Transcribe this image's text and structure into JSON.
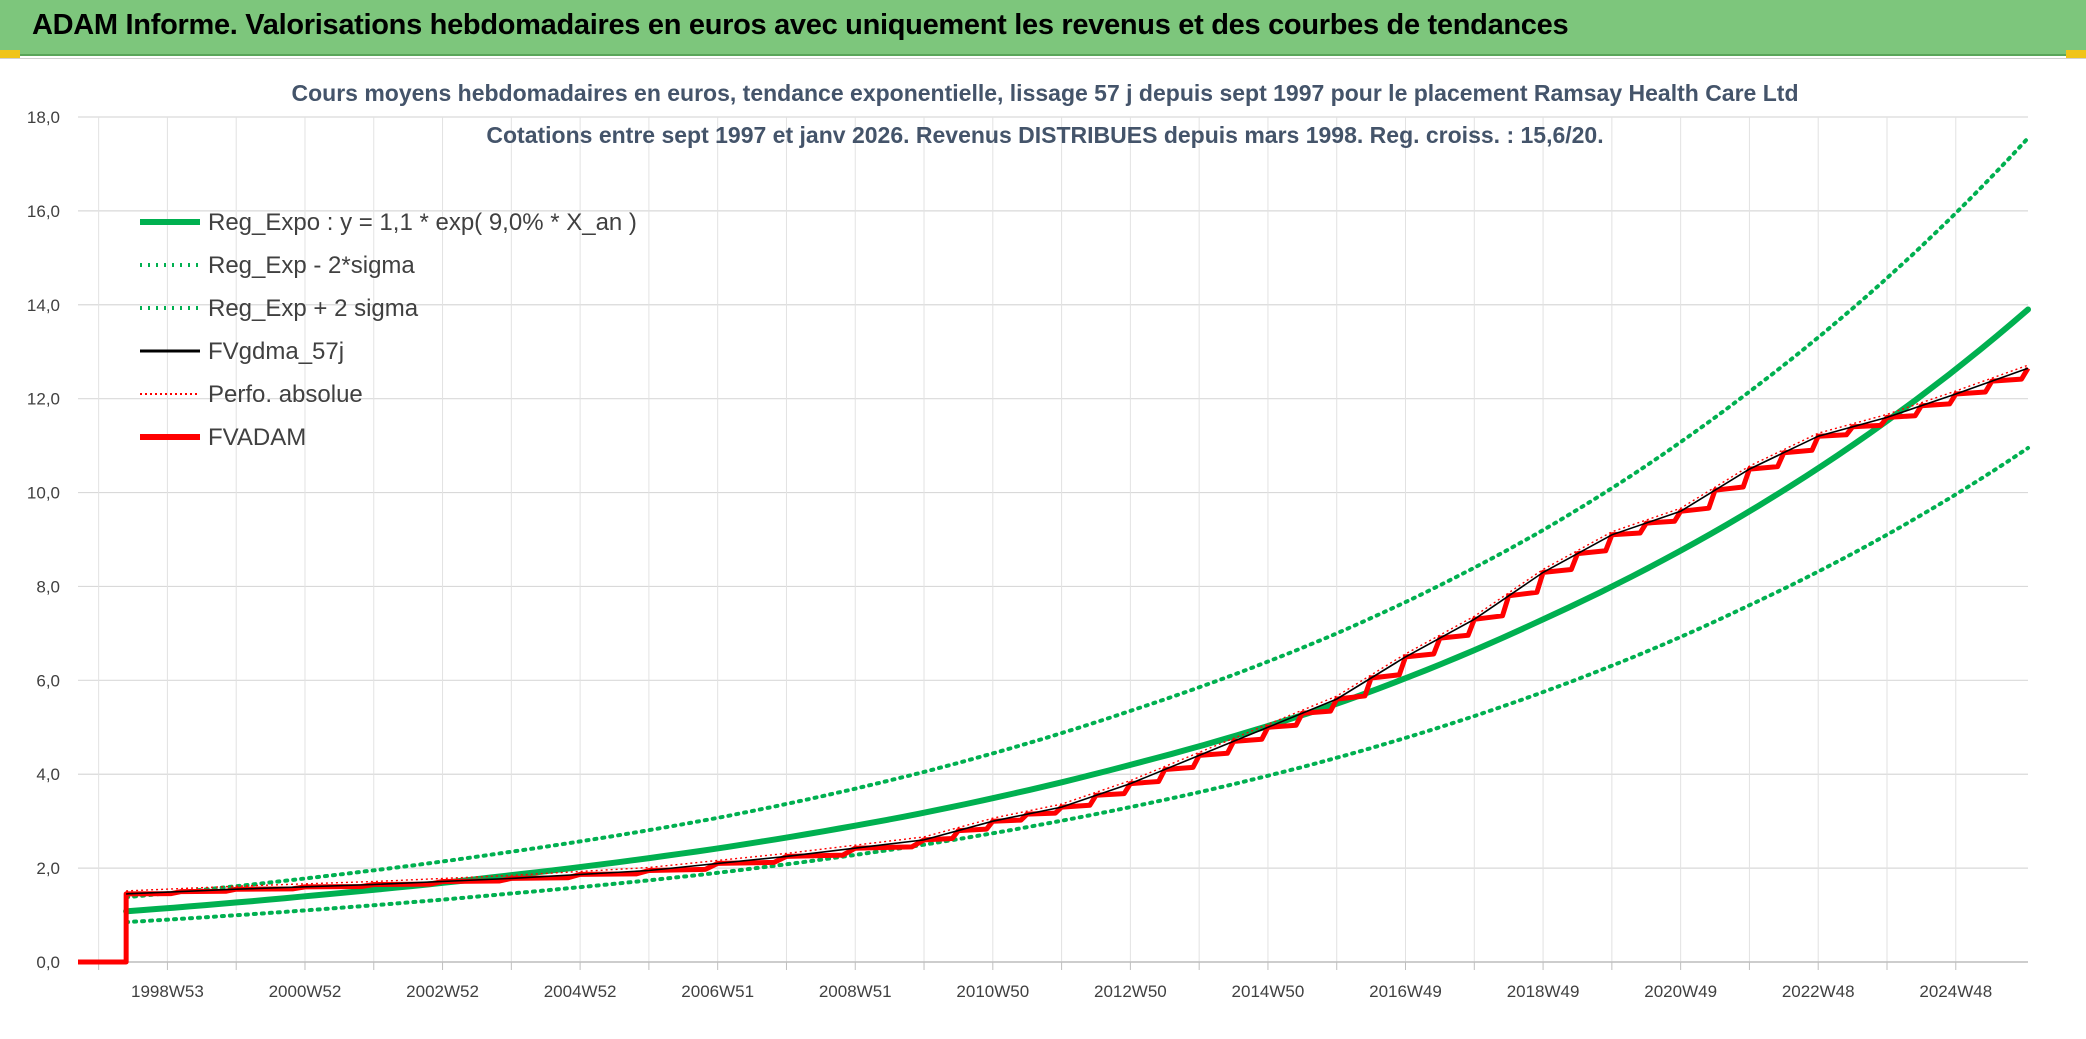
{
  "header": {
    "title": "ADAM Informe. Valorisations hebdomadaires en euros avec uniquement les revenus et des courbes de tendances"
  },
  "colors": {
    "banner": "#7dc67c",
    "green": "#00b050",
    "red": "#ff0000",
    "black": "#000000",
    "title": "#44546a"
  },
  "chart_data": {
    "type": "line",
    "title": "Cours moyens hebdomadaires en euros, tendance exponentielle, lissage 57 j depuis sept 1997 pour le placement Ramsay Health Care Ltd",
    "subtitle": "Cotations entre sept 1997 et janv 2026. Revenus DISTRIBUES depuis mars 1998. Reg. croiss. : 15,6/20.",
    "xlabel": "",
    "ylabel": "",
    "ylim": [
      0,
      18
    ],
    "xlim": [
      1997.7,
      2026.05
    ],
    "y_ticks": [
      "0,0",
      "2,0",
      "4,0",
      "6,0",
      "8,0",
      "10,0",
      "12,0",
      "14,0",
      "16,0",
      "18,0"
    ],
    "x_ticks": [
      {
        "label": "1998W53",
        "x": 1999.0
      },
      {
        "label": "2000W52",
        "x": 2001.0
      },
      {
        "label": "2002W52",
        "x": 2003.0
      },
      {
        "label": "2004W52",
        "x": 2005.0
      },
      {
        "label": "2006W51",
        "x": 2007.0
      },
      {
        "label": "2008W51",
        "x": 2009.0
      },
      {
        "label": "2010W50",
        "x": 2011.0
      },
      {
        "label": "2012W50",
        "x": 2013.0
      },
      {
        "label": "2014W50",
        "x": 2015.0
      },
      {
        "label": "2016W49",
        "x": 2017.0
      },
      {
        "label": "2018W49",
        "x": 2019.0
      },
      {
        "label": "2020W49",
        "x": 2021.0
      },
      {
        "label": "2022W48",
        "x": 2023.0
      },
      {
        "label": "2024W48",
        "x": 2025.0
      }
    ],
    "legend": [
      {
        "name": "Reg_Expo : y = 1,1 * exp( 9,0% *  X_an )",
        "color": "#00b050",
        "style": "solid-thick"
      },
      {
        "name": "Reg_Exp - 2*sigma",
        "color": "#00b050",
        "style": "dotted"
      },
      {
        "name": "Reg_Exp + 2 sigma",
        "color": "#00b050",
        "style": "dotted"
      },
      {
        "name": "FVgdma_57j",
        "color": "#000000",
        "style": "solid-thin"
      },
      {
        "name": "Perfo. absolue",
        "color": "#ff0000",
        "style": "dotted-thin"
      },
      {
        "name": "FVADAM",
        "color": "#ff0000",
        "style": "solid-thick"
      }
    ],
    "legend_position": "top-left",
    "series": [
      {
        "name": "Reg_Expo",
        "x": [
          1998.4,
          2001,
          2004,
          2007,
          2010,
          2013,
          2016,
          2019,
          2022,
          2026.05
        ],
        "values": [
          1.08,
          1.4,
          1.85,
          2.42,
          3.18,
          4.2,
          5.5,
          7.3,
          9.6,
          13.9
        ]
      },
      {
        "name": "Reg_Exp - 2*sigma",
        "x": [
          1998.4,
          2001,
          2004,
          2007,
          2010,
          2013,
          2016,
          2019,
          2022,
          2026.05
        ],
        "values": [
          0.85,
          1.1,
          1.46,
          1.9,
          2.5,
          3.3,
          4.35,
          5.75,
          7.6,
          10.95
        ]
      },
      {
        "name": "Reg_Exp + 2 sigma",
        "x": [
          1998.4,
          2001,
          2004,
          2007,
          2010,
          2013,
          2016,
          2019,
          2022,
          2026.05
        ],
        "values": [
          1.38,
          1.78,
          2.35,
          3.07,
          4.05,
          5.35,
          7.0,
          9.2,
          12.15,
          17.55
        ]
      },
      {
        "name": "FVADAM",
        "x": [
          1997.7,
          1998.4,
          1998.4,
          2000,
          2002,
          2004,
          2006,
          2008,
          2010,
          2011,
          2012,
          2013,
          2014,
          2015,
          2016,
          2017,
          2018,
          2019,
          2020,
          2021,
          2022,
          2023,
          2024,
          2025,
          2026.05
        ],
        "values": [
          0.0,
          0.0,
          1.45,
          1.55,
          1.65,
          1.78,
          1.95,
          2.25,
          2.6,
          3.0,
          3.3,
          3.8,
          4.4,
          5.0,
          5.6,
          6.5,
          7.3,
          8.3,
          9.1,
          9.6,
          10.5,
          11.2,
          11.6,
          12.1,
          12.65
        ]
      }
    ]
  }
}
